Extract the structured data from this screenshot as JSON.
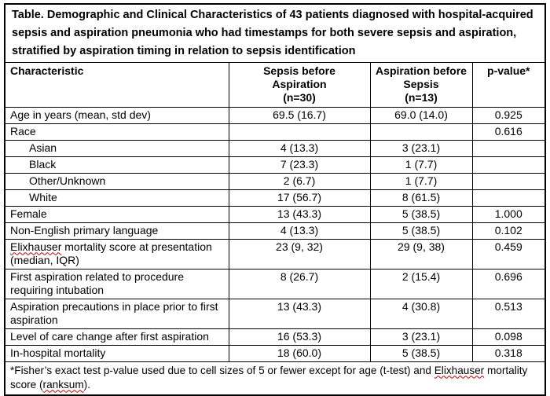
{
  "colors": {
    "text": "#000000",
    "border": "#000000",
    "background": "#ffffff",
    "spellcheck_underline": "#c00000"
  },
  "table": {
    "title": "Table. Demographic and Clinical Characteristics of 43 patients diagnosed with hospital-acquired sepsis and aspiration pneumonia who had timestamps for both severe sepsis and aspiration, stratified by aspiration timing in relation to sepsis identification",
    "columns": {
      "characteristic": "Characteristic",
      "group1": "Sepsis before\nAspiration\n(n=30)",
      "group2": "Aspiration before\nSepsis\n(n=13)",
      "pvalue": "p-value*"
    },
    "rows": [
      {
        "label": "Age in years (mean, std dev)",
        "indent": false,
        "sepsis_before": "69.5 (16.7)",
        "aspiration_before": "69.0 (14.0)",
        "p": "0.925"
      },
      {
        "label": "Race",
        "indent": false,
        "sepsis_before": "",
        "aspiration_before": "",
        "p": "0.616"
      },
      {
        "label": "Asian",
        "indent": true,
        "sepsis_before": "4 (13.3)",
        "aspiration_before": "3 (23.1)",
        "p": ""
      },
      {
        "label": "Black",
        "indent": true,
        "sepsis_before": "7 (23.3)",
        "aspiration_before": "1 (7.7)",
        "p": ""
      },
      {
        "label": "Other/Unknown",
        "indent": true,
        "sepsis_before": "2 (6.7)",
        "aspiration_before": "1 (7.7)",
        "p": ""
      },
      {
        "label": "White",
        "indent": true,
        "sepsis_before": "17 (56.7)",
        "aspiration_before": "8 (61.5)",
        "p": ""
      },
      {
        "label": "Female",
        "indent": false,
        "sepsis_before": "13 (43.3)",
        "aspiration_before": "5 (38.5)",
        "p": "1.000"
      },
      {
        "label": "Non-English primary language",
        "indent": false,
        "sepsis_before": "4 (13.3)",
        "aspiration_before": "5 (38.5)",
        "p": "0.102"
      },
      {
        "label_misspelled": "Elixhauser",
        "label_rest": " mortality score at presentation (median, IQR)",
        "indent": false,
        "sepsis_before": "23 (9, 32)",
        "aspiration_before": "29 (9, 38)",
        "p": "0.459"
      },
      {
        "label": "First aspiration related to procedure requiring intubation",
        "indent": false,
        "sepsis_before": "8 (26.7)",
        "aspiration_before": "2 (15.4)",
        "p": "0.696"
      },
      {
        "label": "Aspiration precautions in place prior to first aspiration",
        "indent": false,
        "sepsis_before": "13 (43.3)",
        "aspiration_before": "4 (30.8)",
        "p": "0.513"
      },
      {
        "label": "Level of care change after first aspiration",
        "indent": false,
        "sepsis_before": "16 (53.3)",
        "aspiration_before": "3 (23.1)",
        "p": "0.098"
      },
      {
        "label": "In-hospital mortality",
        "indent": false,
        "sepsis_before": "18 (60.0)",
        "aspiration_before": "5 (38.5)",
        "p": "0.318"
      }
    ],
    "footnote": {
      "part1": "*Fisher’s exact test p-value used due to cell sizes of 5 or fewer except for age (t-test) and ",
      "misspelled1": "Elixhauser",
      "part2": " mortality score (",
      "misspelled2": "ranksum",
      "part3": ")."
    }
  }
}
